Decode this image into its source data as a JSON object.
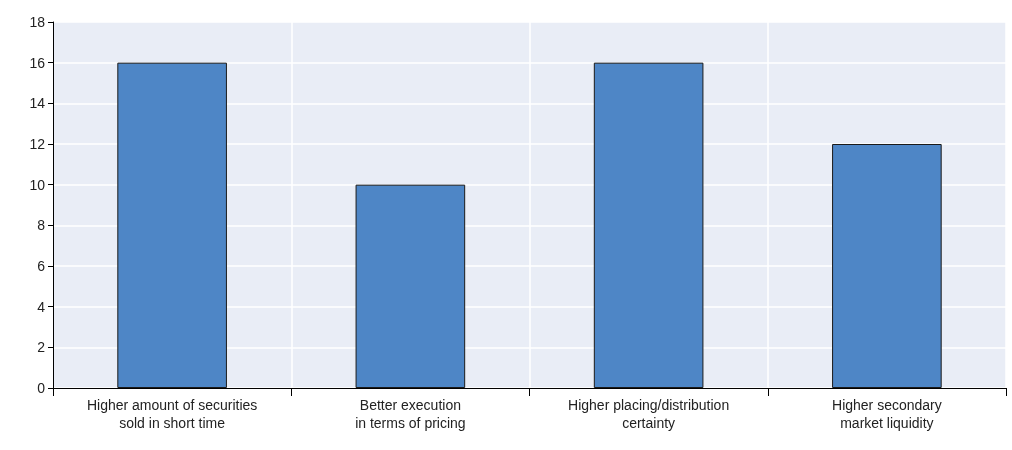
{
  "chart_data": {
    "type": "bar",
    "categories": [
      "Higher amount of securities\nsold in short time",
      "Better execution\nin terms of pricing",
      "Higher placing/distribution\ncertainty",
      "Higher secondary\nmarket liquidity"
    ],
    "values": [
      16,
      10,
      16,
      12
    ],
    "color": "#4e86c6",
    "ylim": [
      0,
      18
    ],
    "yticks": [
      0,
      2,
      4,
      6,
      8,
      10,
      12,
      14,
      16,
      18
    ],
    "grid": true
  }
}
